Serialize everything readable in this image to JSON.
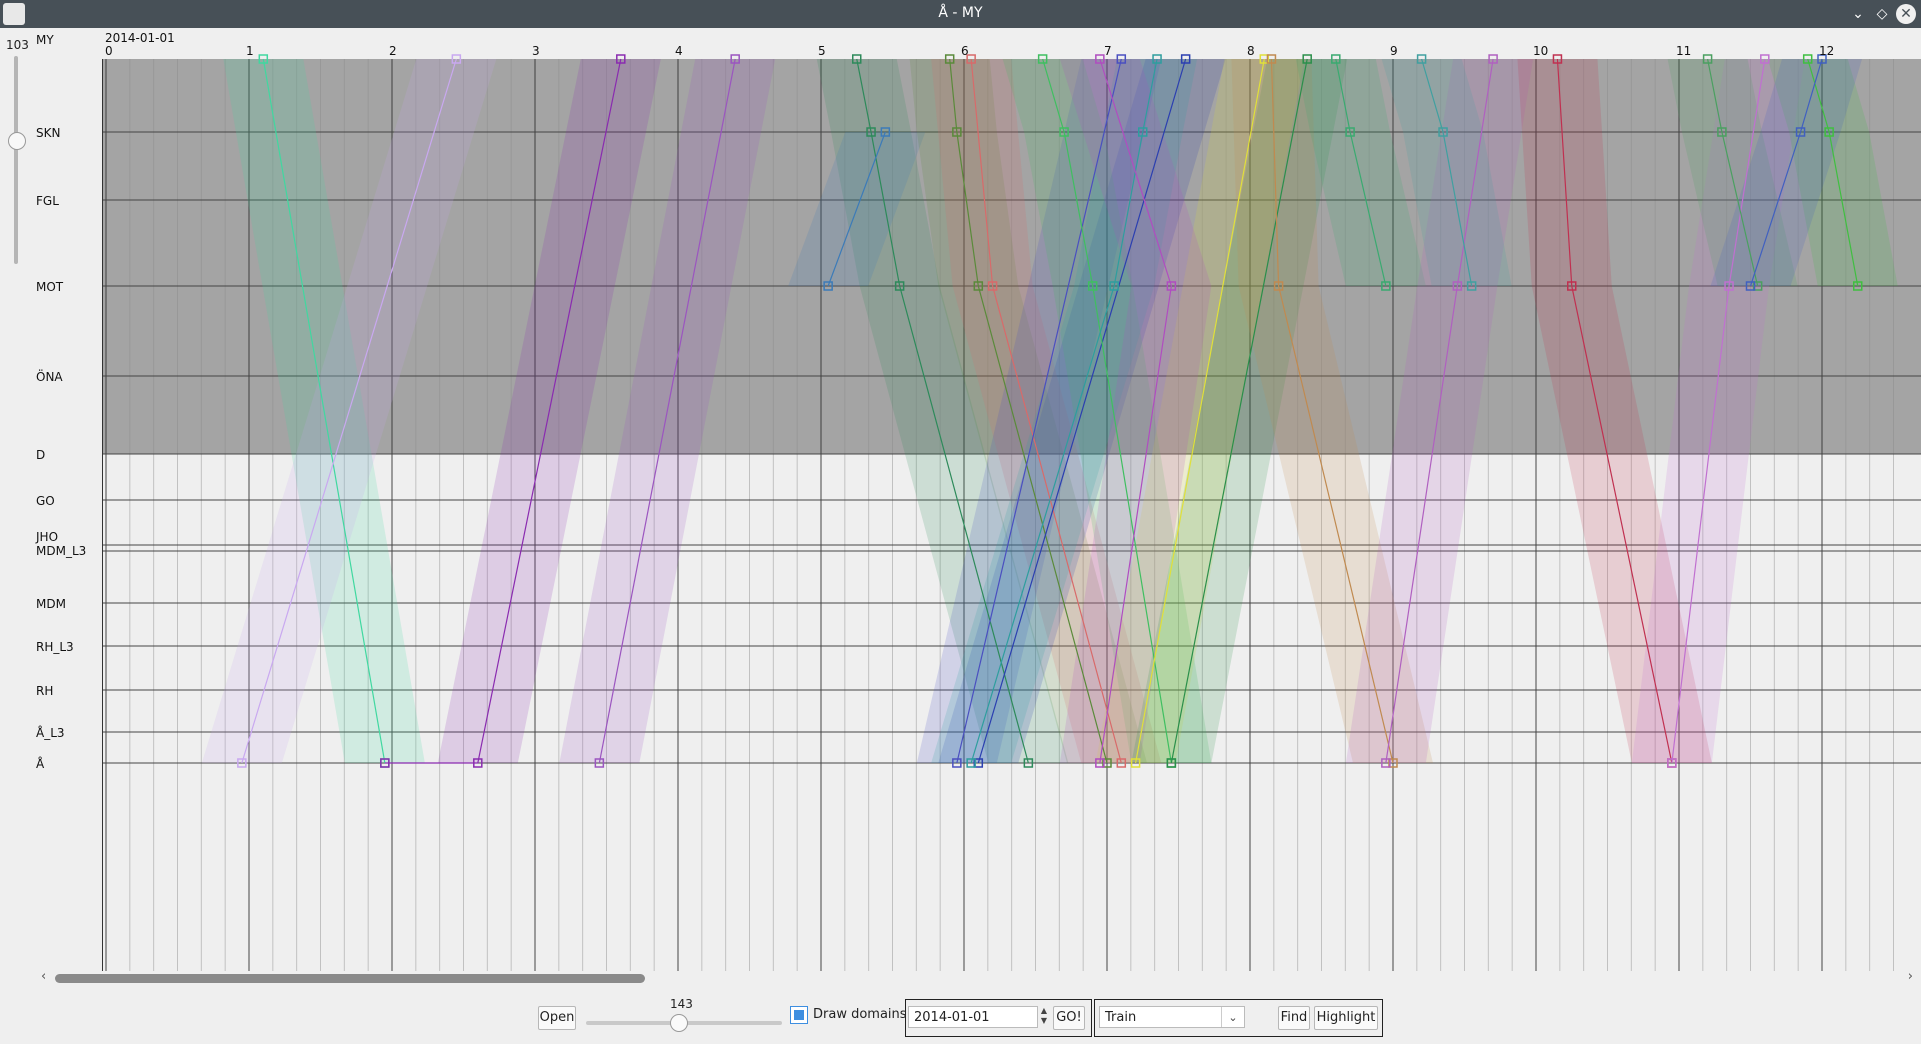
{
  "window": {
    "title": "Å - MY"
  },
  "zoom_vertical": {
    "value": "103"
  },
  "view": {
    "origin_station": "MY",
    "start_date": "2014-01-01"
  },
  "x_axis": {
    "ticks": [
      "0",
      "1",
      "2",
      "3",
      "4",
      "5",
      "6",
      "7",
      "8",
      "9",
      "10",
      "11",
      "12"
    ]
  },
  "stations": [
    {
      "name": "SKN"
    },
    {
      "name": "FGL"
    },
    {
      "name": "MOT"
    },
    {
      "name": "ÖNA"
    },
    {
      "name": "D"
    },
    {
      "name": "GO"
    },
    {
      "name": "JHO"
    },
    {
      "name": "MDM_L3"
    },
    {
      "name": "MDM"
    },
    {
      "name": "RH_L3"
    },
    {
      "name": "RH"
    },
    {
      "name": "Å_L3"
    },
    {
      "name": "Å"
    }
  ],
  "horizontal_scrollbar": {
    "position_fraction": 0.32
  },
  "controls": {
    "open_label": "Open",
    "zoom_value": "143",
    "draw_domains_label": "Draw domains",
    "draw_domains_checked": true,
    "date_value": "2014-01-01",
    "go_label": "GO!",
    "train_label": "Train",
    "train_value": "",
    "find_label": "Find",
    "highlight_label": "Highlight"
  },
  "colors": {
    "titlebar": "#475057",
    "domain_shade": "#a4a4a4",
    "background": "#efefef",
    "accent": "#3d8ee0"
  },
  "chart_data": {
    "type": "line",
    "title": "",
    "xlabel": "",
    "ylabel": "",
    "x_range": [
      0,
      12.6
    ],
    "y_categories": [
      "MY",
      "SKN",
      "FGL",
      "MOT",
      "ÖNA",
      "D",
      "GO",
      "JHO",
      "MDM_L3",
      "MDM",
      "RH_L3",
      "RH",
      "Å_L3",
      "Å"
    ],
    "shaded_domain": {
      "from": "MY",
      "to": "D"
    },
    "series": [
      {
        "color": "#40d8a0",
        "points": [
          [
            1.1,
            "MY"
          ],
          [
            1.95,
            "Å"
          ]
        ]
      },
      {
        "color": "#c9a8f0",
        "points": [
          [
            2.45,
            "MY"
          ],
          [
            0.95,
            "Å"
          ]
        ]
      },
      {
        "color": "#8a2bb0",
        "points": [
          [
            3.6,
            "MY"
          ],
          [
            2.6,
            "Å"
          ],
          [
            1.95,
            "Å"
          ]
        ]
      },
      {
        "color": "#9b55c0",
        "points": [
          [
            4.4,
            "MY"
          ],
          [
            3.45,
            "Å"
          ]
        ]
      },
      {
        "color": "#2d8a5a",
        "points": [
          [
            5.25,
            "MY"
          ],
          [
            5.35,
            "SKN"
          ],
          [
            5.55,
            "MOT"
          ],
          [
            6.45,
            "Å"
          ]
        ]
      },
      {
        "color": "#3c7bb8",
        "points": [
          [
            5.45,
            "SKN"
          ],
          [
            5.05,
            "MOT"
          ]
        ]
      },
      {
        "color": "#5a8a3a",
        "points": [
          [
            5.9,
            "MY"
          ],
          [
            5.95,
            "SKN"
          ],
          [
            6.1,
            "MOT"
          ],
          [
            7.0,
            "Å"
          ]
        ]
      },
      {
        "color": "#d86a6a",
        "points": [
          [
            6.05,
            "MY"
          ],
          [
            6.2,
            "MOT"
          ],
          [
            7.1,
            "Å"
          ]
        ]
      },
      {
        "color": "#2b3fb0",
        "points": [
          [
            7.55,
            "MY"
          ],
          [
            6.1,
            "Å"
          ]
        ]
      },
      {
        "color": "#4a4fc0",
        "points": [
          [
            7.1,
            "MY"
          ],
          [
            5.95,
            "Å"
          ]
        ]
      },
      {
        "color": "#3fbf60",
        "points": [
          [
            6.55,
            "MY"
          ],
          [
            6.7,
            "SKN"
          ],
          [
            6.9,
            "MOT"
          ],
          [
            7.45,
            "Å"
          ]
        ]
      },
      {
        "color": "#2e9e9e",
        "points": [
          [
            7.35,
            "MY"
          ],
          [
            7.25,
            "SKN"
          ],
          [
            7.05,
            "MOT"
          ],
          [
            6.05,
            "Å"
          ]
        ]
      },
      {
        "color": "#e0e03a",
        "points": [
          [
            8.1,
            "MY"
          ],
          [
            7.2,
            "Å"
          ]
        ]
      },
      {
        "color": "#b04dc0",
        "points": [
          [
            6.95,
            "MY"
          ],
          [
            7.45,
            "MOT"
          ],
          [
            6.95,
            "Å"
          ]
        ]
      },
      {
        "color": "#2a8f4a",
        "points": [
          [
            8.4,
            "MY"
          ],
          [
            7.45,
            "Å"
          ]
        ]
      },
      {
        "color": "#c08a50",
        "points": [
          [
            8.15,
            "MY"
          ],
          [
            8.2,
            "MOT"
          ],
          [
            9.0,
            "Å"
          ]
        ]
      },
      {
        "color": "#3aaa70",
        "points": [
          [
            8.6,
            "MY"
          ],
          [
            8.7,
            "SKN"
          ],
          [
            8.95,
            "MOT"
          ]
        ]
      },
      {
        "color": "#b060c0",
        "points": [
          [
            9.7,
            "MY"
          ],
          [
            9.45,
            "MOT"
          ],
          [
            8.95,
            "Å"
          ]
        ]
      },
      {
        "color": "#c03050",
        "points": [
          [
            10.15,
            "MY"
          ],
          [
            10.25,
            "MOT"
          ],
          [
            10.95,
            "Å"
          ]
        ]
      },
      {
        "color": "#40a0a0",
        "points": [
          [
            9.2,
            "MY"
          ],
          [
            9.35,
            "SKN"
          ],
          [
            9.55,
            "MOT"
          ]
        ]
      },
      {
        "color": "#c070d0",
        "points": [
          [
            11.6,
            "MY"
          ],
          [
            11.35,
            "MOT"
          ],
          [
            10.95,
            "Å"
          ]
        ]
      },
      {
        "color": "#4aa060",
        "points": [
          [
            11.2,
            "MY"
          ],
          [
            11.3,
            "SKN"
          ],
          [
            11.55,
            "MOT"
          ]
        ]
      },
      {
        "color": "#3fbf40",
        "points": [
          [
            11.9,
            "MY"
          ],
          [
            12.05,
            "SKN"
          ],
          [
            12.25,
            "MOT"
          ]
        ]
      },
      {
        "color": "#4060c0",
        "points": [
          [
            12.0,
            "MY"
          ],
          [
            11.85,
            "SKN"
          ],
          [
            11.5,
            "MOT"
          ]
        ]
      }
    ]
  }
}
